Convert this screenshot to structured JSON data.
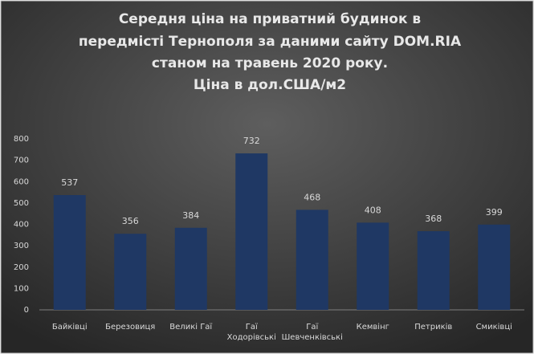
{
  "chart_data": {
    "type": "bar",
    "title": [
      "Середня ціна на приватний  будинок в",
      "передмісті Тернополя за даними сайту DOM.RIA",
      "станом на травень 2020 року."
    ],
    "subtitle": "Ціна в дол.США/м2",
    "categories": [
      "Байківці",
      "Березовиця",
      "Великі Гаї",
      "Гаї\nХодорівські",
      "Гаї\nШевченківські",
      "Кемвінг",
      "Петриків",
      "Смиківці"
    ],
    "values": [
      537,
      356,
      384,
      732,
      468,
      408,
      368,
      399
    ],
    "color": "#1f3864",
    "ylim": [
      0,
      800
    ],
    "yticks": [
      0,
      100,
      200,
      300,
      400,
      500,
      600,
      700,
      800
    ],
    "grid": false
  }
}
